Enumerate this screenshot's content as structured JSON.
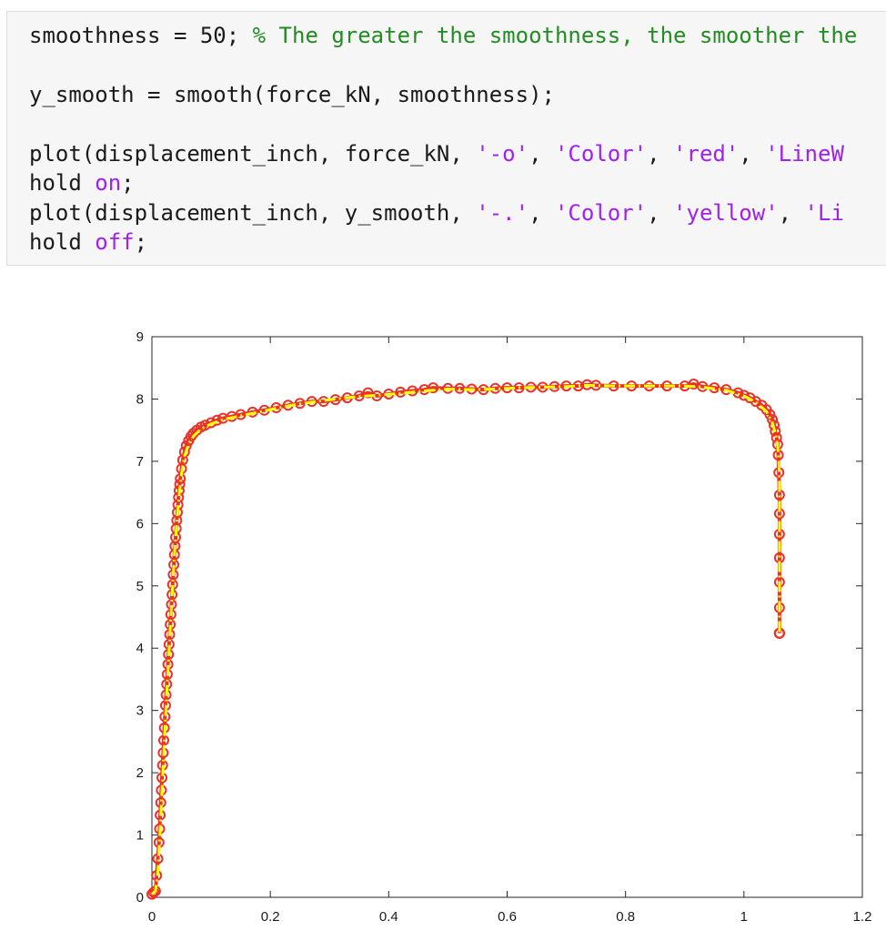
{
  "code": {
    "lines": [
      [
        {
          "t": "smoothness = 50; ",
          "c": "plain"
        },
        {
          "t": "% The greater the smoothness, the smoother the",
          "c": "comment"
        }
      ],
      [],
      [
        {
          "t": "y_smooth = smooth(force_kN, smoothness);",
          "c": "plain"
        }
      ],
      [],
      [
        {
          "t": "plot(displacement_inch, force_kN, ",
          "c": "plain"
        },
        {
          "t": "'-o'",
          "c": "string"
        },
        {
          "t": ", ",
          "c": "plain"
        },
        {
          "t": "'Color'",
          "c": "string"
        },
        {
          "t": ", ",
          "c": "plain"
        },
        {
          "t": "'red'",
          "c": "string"
        },
        {
          "t": ", ",
          "c": "plain"
        },
        {
          "t": "'LineW",
          "c": "string"
        }
      ],
      [
        {
          "t": "hold ",
          "c": "plain"
        },
        {
          "t": "on",
          "c": "keyword"
        },
        {
          "t": ";",
          "c": "plain"
        }
      ],
      [
        {
          "t": "plot(displacement_inch, y_smooth, ",
          "c": "plain"
        },
        {
          "t": "'-.'",
          "c": "string"
        },
        {
          "t": ", ",
          "c": "plain"
        },
        {
          "t": "'Color'",
          "c": "string"
        },
        {
          "t": ", ",
          "c": "plain"
        },
        {
          "t": "'yellow'",
          "c": "string"
        },
        {
          "t": ", ",
          "c": "plain"
        },
        {
          "t": "'Li",
          "c": "string"
        }
      ],
      [
        {
          "t": "hold ",
          "c": "plain"
        },
        {
          "t": "off",
          "c": "keyword"
        },
        {
          "t": ";",
          "c": "plain"
        }
      ]
    ]
  },
  "chart_data": {
    "type": "line",
    "title": "",
    "xlabel": "",
    "ylabel": "",
    "xlim": [
      0,
      1.2
    ],
    "ylim": [
      0,
      9
    ],
    "xticks": [
      0,
      0.2,
      0.4,
      0.6,
      0.8,
      1,
      1.2
    ],
    "xtick_labels": [
      "0",
      "0.2",
      "0.4",
      "0.6",
      "0.8",
      "1",
      "1.2"
    ],
    "yticks": [
      0,
      1,
      2,
      3,
      4,
      5,
      6,
      7,
      8,
      9
    ],
    "ytick_labels": [
      "0",
      "1",
      "2",
      "3",
      "4",
      "5",
      "6",
      "7",
      "8",
      "9"
    ],
    "grid": false,
    "series": [
      {
        "color": "#e8322a",
        "marker": "circle",
        "line_style": "solid",
        "x": [
          0.0,
          0.003,
          0.006,
          0.008,
          0.01,
          0.012,
          0.013,
          0.014,
          0.015,
          0.016,
          0.017,
          0.018,
          0.019,
          0.02,
          0.021,
          0.022,
          0.023,
          0.024,
          0.025,
          0.026,
          0.027,
          0.028,
          0.029,
          0.03,
          0.031,
          0.032,
          0.033,
          0.034,
          0.035,
          0.036,
          0.037,
          0.038,
          0.039,
          0.04,
          0.041,
          0.042,
          0.043,
          0.044,
          0.045,
          0.046,
          0.047,
          0.048,
          0.05,
          0.052,
          0.055,
          0.058,
          0.062,
          0.066,
          0.07,
          0.076,
          0.083,
          0.09,
          0.1,
          0.11,
          0.12,
          0.135,
          0.15,
          0.17,
          0.19,
          0.21,
          0.23,
          0.25,
          0.27,
          0.29,
          0.31,
          0.33,
          0.35,
          0.365,
          0.38,
          0.4,
          0.42,
          0.44,
          0.46,
          0.475,
          0.5,
          0.52,
          0.54,
          0.56,
          0.58,
          0.6,
          0.62,
          0.64,
          0.66,
          0.68,
          0.7,
          0.72,
          0.735,
          0.75,
          0.78,
          0.81,
          0.84,
          0.87,
          0.9,
          0.915,
          0.93,
          0.95,
          0.97,
          0.99,
          1.0,
          1.01,
          1.02,
          1.03,
          1.038,
          1.044,
          1.048,
          1.051,
          1.053,
          1.055,
          1.057,
          1.058,
          1.059,
          1.06,
          1.06,
          1.06,
          1.06,
          1.06,
          1.06,
          1.06,
          1.06,
          1.06,
          1.06,
          1.06,
          1.06,
          1.06
        ],
        "y": [
          0.05,
          0.08,
          0.1,
          0.35,
          0.62,
          0.88,
          1.1,
          1.32,
          1.52,
          1.72,
          1.92,
          2.12,
          2.32,
          2.52,
          2.72,
          2.9,
          3.08,
          3.25,
          3.42,
          3.58,
          3.74,
          3.9,
          4.06,
          4.22,
          4.38,
          4.54,
          4.7,
          4.86,
          5.02,
          5.18,
          5.34,
          5.5,
          5.64,
          5.78,
          5.92,
          6.05,
          6.18,
          6.3,
          6.42,
          6.53,
          6.63,
          6.72,
          6.88,
          7.02,
          7.15,
          7.25,
          7.33,
          7.4,
          7.45,
          7.5,
          7.55,
          7.58,
          7.62,
          7.66,
          7.69,
          7.72,
          7.75,
          7.79,
          7.82,
          7.86,
          7.9,
          7.93,
          7.96,
          7.96,
          7.99,
          8.02,
          8.05,
          8.1,
          8.05,
          8.08,
          8.11,
          8.13,
          8.15,
          8.18,
          8.17,
          8.17,
          8.16,
          8.15,
          8.17,
          8.18,
          8.18,
          8.19,
          8.19,
          8.2,
          8.21,
          8.21,
          8.23,
          8.22,
          8.21,
          8.21,
          8.21,
          8.21,
          8.21,
          8.24,
          8.2,
          8.18,
          8.15,
          8.1,
          8.06,
          8.02,
          7.96,
          7.9,
          7.83,
          7.75,
          7.67,
          7.58,
          7.48,
          7.38,
          7.27,
          7.1,
          6.82,
          6.46,
          6.16,
          5.83,
          5.45,
          5.06,
          4.65,
          4.24,
          4.24,
          4.24,
          4.24,
          4.24,
          4.24,
          4.24
        ]
      },
      {
        "color": "#ffff00",
        "marker": "none",
        "line_style": "dash-dot",
        "x": [
          0.0,
          0.006,
          0.01,
          0.014,
          0.018,
          0.022,
          0.026,
          0.03,
          0.034,
          0.038,
          0.042,
          0.046,
          0.05,
          0.055,
          0.062,
          0.07,
          0.083,
          0.1,
          0.12,
          0.15,
          0.19,
          0.23,
          0.27,
          0.31,
          0.35,
          0.38,
          0.42,
          0.46,
          0.5,
          0.54,
          0.58,
          0.62,
          0.66,
          0.7,
          0.735,
          0.78,
          0.84,
          0.9,
          0.93,
          0.97,
          1.0,
          1.02,
          1.038,
          1.048,
          1.053,
          1.057,
          1.059,
          1.06,
          1.06,
          1.06,
          1.06
        ],
        "y": [
          0.05,
          0.1,
          0.4,
          1.1,
          1.9,
          2.7,
          3.45,
          4.15,
          4.85,
          5.5,
          6.02,
          6.45,
          6.8,
          7.08,
          7.28,
          7.4,
          7.52,
          7.6,
          7.67,
          7.73,
          7.81,
          7.89,
          7.95,
          8.0,
          8.04,
          8.06,
          8.09,
          8.13,
          8.16,
          8.15,
          8.16,
          8.18,
          8.19,
          8.2,
          8.22,
          8.21,
          8.21,
          8.21,
          8.19,
          8.14,
          8.05,
          7.95,
          7.8,
          7.62,
          7.45,
          7.25,
          7.0,
          6.6,
          5.8,
          5.0,
          4.24
        ]
      }
    ]
  }
}
